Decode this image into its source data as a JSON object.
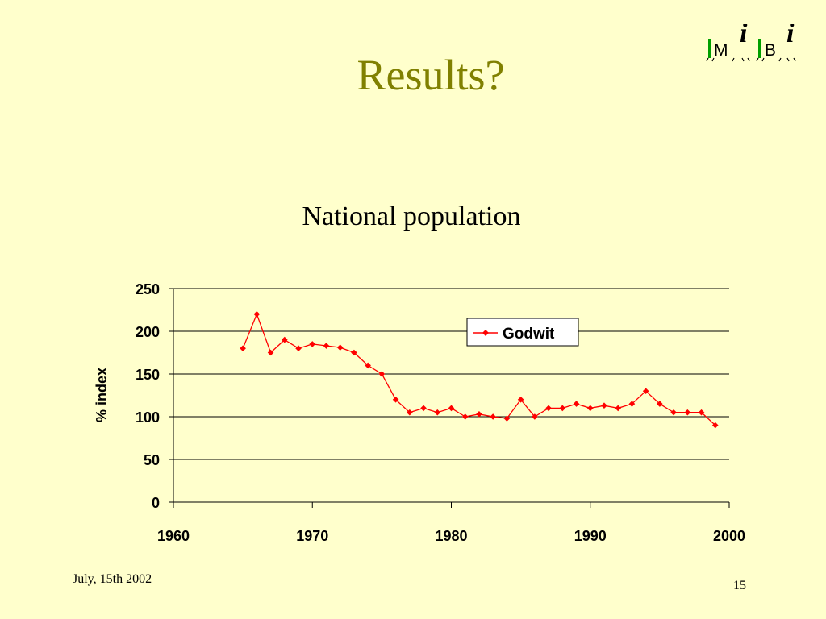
{
  "slide": {
    "title": "Results?",
    "footer_date": "July, 15th 2002",
    "slide_number": "15",
    "title_color": "#808000",
    "background_color": "#FFFFCC"
  },
  "logo": {
    "letters": [
      "M",
      "B"
    ],
    "accent_letter": "i",
    "bar_color": "#00A000",
    "letter_color": "#000000"
  },
  "chart_data": {
    "type": "line",
    "title": "National population",
    "xlabel": "",
    "ylabel": "% index",
    "xlim": [
      1960,
      2000
    ],
    "ylim": [
      0,
      250
    ],
    "x_ticks": [
      1960,
      1970,
      1980,
      1990,
      2000
    ],
    "y_ticks": [
      0,
      50,
      100,
      150,
      200,
      250
    ],
    "grid": "horizontal",
    "legend": "top-right",
    "series": [
      {
        "name": "Godwit",
        "color": "#FF0000",
        "marker": "diamond",
        "x": [
          1965,
          1966,
          1967,
          1968,
          1969,
          1970,
          1971,
          1972,
          1973,
          1974,
          1975,
          1976,
          1977,
          1978,
          1979,
          1980,
          1981,
          1982,
          1983,
          1984,
          1985,
          1986,
          1987,
          1988,
          1989,
          1990,
          1991,
          1992,
          1993,
          1994,
          1995,
          1996,
          1997,
          1998,
          1999
        ],
        "y": [
          180,
          220,
          175,
          190,
          180,
          185,
          183,
          181,
          175,
          160,
          150,
          120,
          105,
          110,
          105,
          110,
          100,
          103,
          100,
          98,
          120,
          100,
          110,
          110,
          115,
          110,
          113,
          110,
          115,
          130,
          115,
          105,
          105,
          105,
          90
        ]
      }
    ]
  }
}
